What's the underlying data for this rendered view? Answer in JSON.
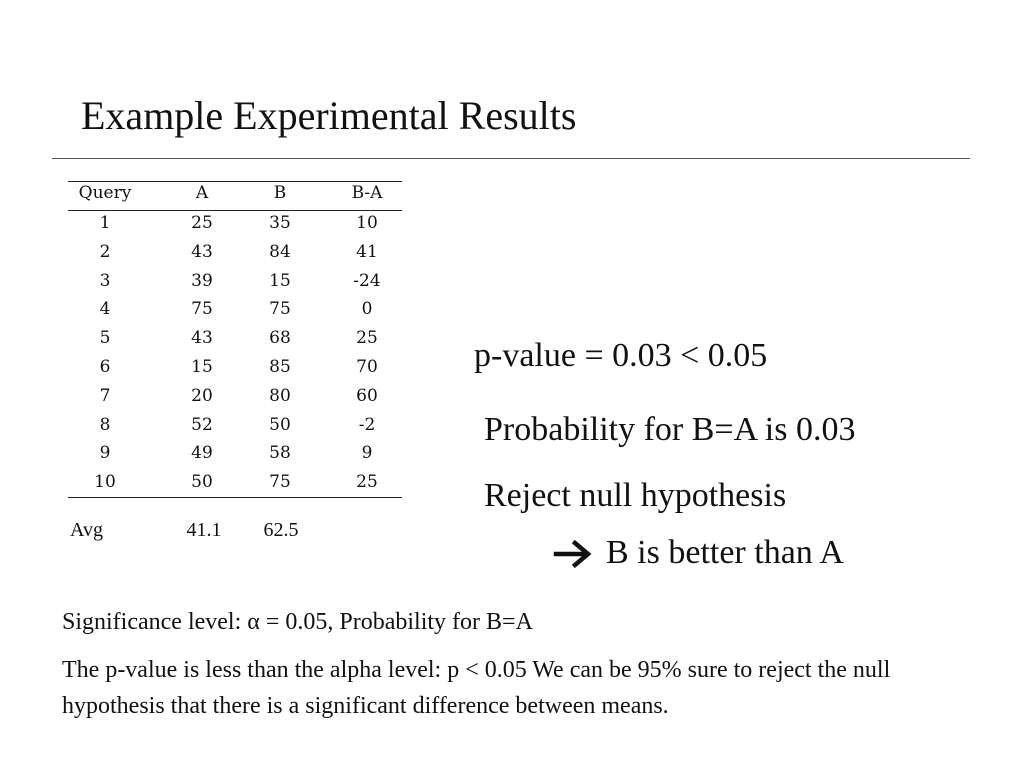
{
  "header": {
    "title": "Example Experimental Results"
  },
  "table": {
    "columns": [
      "Query",
      "A",
      "B",
      "B-A"
    ],
    "rows": [
      [
        1,
        25,
        35,
        10
      ],
      [
        2,
        43,
        84,
        41
      ],
      [
        3,
        39,
        15,
        -24
      ],
      [
        4,
        75,
        75,
        0
      ],
      [
        5,
        43,
        68,
        25
      ],
      [
        6,
        15,
        85,
        70
      ],
      [
        7,
        20,
        80,
        60
      ],
      [
        8,
        52,
        50,
        -2
      ],
      [
        9,
        49,
        58,
        9
      ],
      [
        10,
        50,
        75,
        25
      ]
    ],
    "average": {
      "label": "Avg",
      "values": [
        41.1,
        62.5
      ]
    }
  },
  "result": {
    "p_value": "p-value = 0.03 < 0.05",
    "probability": "Probability for B=A is 0.03",
    "decision": "Reject null hypothesis",
    "conclusion": "B is better than A"
  },
  "notes": {
    "significance": "Significance level: α = 0.05, Probability for B=A",
    "explanation": "The p-value is less than the alpha level: p < 0.05 We can be 95% sure to reject the null hypothesis that there is a significant difference between means."
  }
}
